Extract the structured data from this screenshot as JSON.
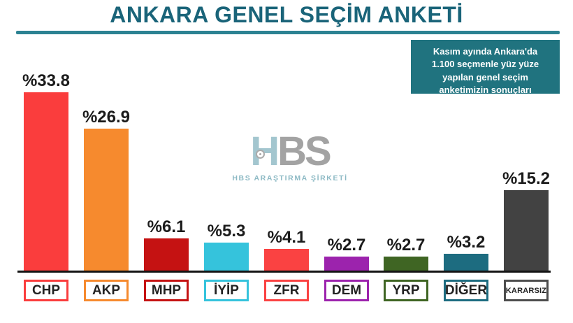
{
  "title": "ANKARA GENEL SEÇİM ANKETİ",
  "info_box": {
    "lines": [
      "Kasım ayında Ankara'da",
      "1.100 seçmenle yüz yüze",
      "yapılan genel seçim",
      "anketimizin sonuçları"
    ],
    "background": "#20737f"
  },
  "watermark": {
    "logo_h": "H",
    "logo_bs": "BS",
    "subtitle": "HBS ARAŞTIRMA ŞİRKETİ"
  },
  "chart_data": {
    "type": "bar",
    "title": "ANKARA GENEL SEÇİM ANKETİ",
    "categories": [
      "CHP",
      "AKP",
      "MHP",
      "İYİP",
      "ZFR",
      "DEM",
      "YRP",
      "DİĞER",
      "KARARSIZ"
    ],
    "values": [
      33.8,
      26.9,
      6.1,
      5.3,
      4.1,
      2.7,
      2.7,
      3.2,
      15.2
    ],
    "value_labels": [
      "%33.8",
      "%26.9",
      "%6.1",
      "%5.3",
      "%4.1",
      "%2.7",
      "%2.7",
      "%3.2",
      "%15.2"
    ],
    "colors": [
      "#fa3d3d",
      "#f68a2e",
      "#c51212",
      "#35c3dc",
      "#fa4242",
      "#9c23ad",
      "#3f6523",
      "#1d6c80",
      "#424242"
    ],
    "xlabel": "",
    "ylabel": "",
    "ylim": [
      0,
      35
    ],
    "grid": false,
    "legend": false,
    "value_label_position": "above-bar",
    "category_label_style": "boxed-below-axis"
  },
  "colors": {
    "title": "#1a6479",
    "rule": "#2c8292",
    "baseline": "#141414",
    "background": "#ffffff"
  }
}
